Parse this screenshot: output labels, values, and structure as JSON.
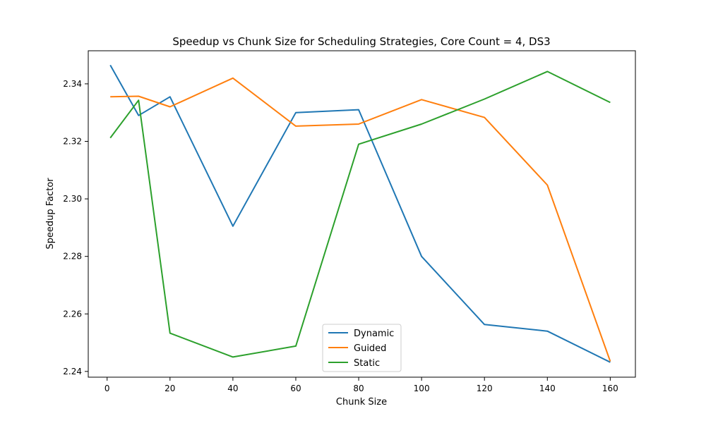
{
  "chart_data": {
    "type": "line",
    "title": "Speedup vs Chunk Size for Scheduling Strategies, Core Count = 4, DS3",
    "xlabel": "Chunk Size",
    "ylabel": "Speedup Factor",
    "x": [
      1,
      10,
      20,
      40,
      60,
      80,
      100,
      120,
      140,
      160
    ],
    "xlim": [
      -6,
      168
    ],
    "ylim": [
      2.238,
      2.3515
    ],
    "xticks": [
      0,
      20,
      40,
      60,
      80,
      100,
      120,
      140,
      160
    ],
    "yticks": [
      2.24,
      2.26,
      2.28,
      2.3,
      2.32,
      2.34
    ],
    "ytick_labels": [
      "2.24",
      "2.26",
      "2.28",
      "2.30",
      "2.32",
      "2.34"
    ],
    "grid": false,
    "legend_position": "lower-center",
    "series": [
      {
        "name": "Dynamic",
        "color": "#1f77b4",
        "values": [
          2.3465,
          2.329,
          2.3355,
          2.2905,
          2.33,
          2.331,
          2.28,
          2.2563,
          2.254,
          2.2432
        ]
      },
      {
        "name": "Guided",
        "color": "#ff7f0e",
        "values": [
          2.3355,
          2.3357,
          2.332,
          2.342,
          2.3253,
          2.326,
          2.3345,
          2.3283,
          2.3048,
          2.2435
        ]
      },
      {
        "name": "Static",
        "color": "#2ca02c",
        "values": [
          2.3212,
          2.3343,
          2.2533,
          2.245,
          2.2488,
          2.319,
          2.326,
          2.3347,
          2.3443,
          2.3335
        ]
      }
    ]
  }
}
